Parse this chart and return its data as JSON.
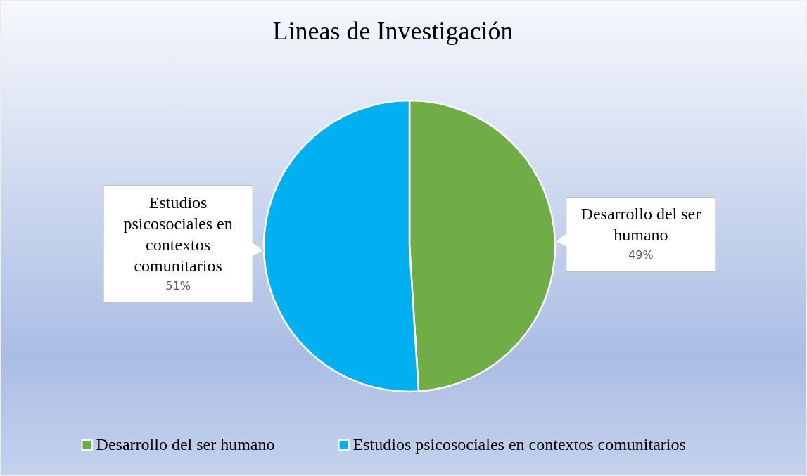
{
  "chart_data": {
    "type": "pie",
    "title": "Lineas de Investigación",
    "categories": [
      "Desarrollo del ser humano",
      "Estudios psicosociales en contextos comunitarios"
    ],
    "values": [
      49,
      51
    ],
    "colors": [
      "#70ad47",
      "#00b0f0"
    ],
    "value_labels": [
      "49%",
      "51%"
    ],
    "legend": "bottom"
  }
}
